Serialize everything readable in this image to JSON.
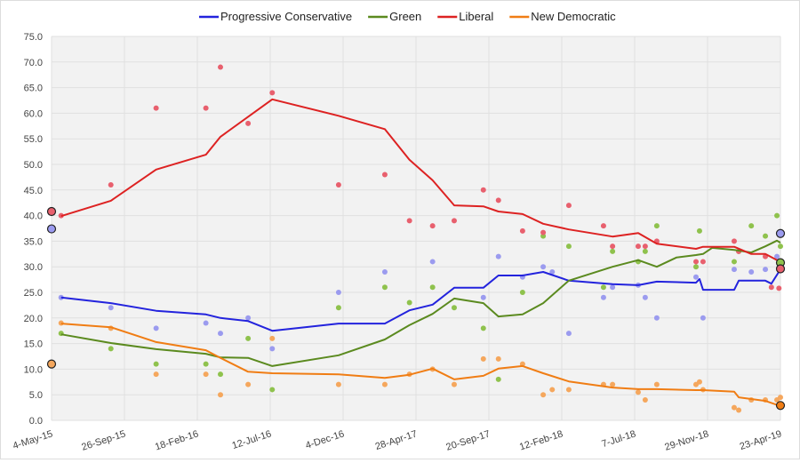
{
  "chart_data": {
    "type": "line",
    "title": "",
    "xlabel": "",
    "ylabel": "",
    "x_ticks": [
      "4-May-15",
      "26-Sep-15",
      "18-Feb-16",
      "12-Jul-16",
      "4-Dec-16",
      "28-Apr-17",
      "20-Sep-17",
      "12-Feb-18",
      "7-Jul-18",
      "29-Nov-18",
      "23-Apr-19"
    ],
    "x_tick_dates": [
      "2015-05-04",
      "2015-09-26",
      "2016-02-18",
      "2016-07-12",
      "2016-12-04",
      "2017-04-28",
      "2017-09-20",
      "2018-02-12",
      "2018-07-07",
      "2018-11-29",
      "2019-04-23"
    ],
    "y_ticks": [
      "0.0",
      "5.0",
      "10.0",
      "15.0",
      "20.0",
      "25.0",
      "30.0",
      "35.0",
      "40.0",
      "45.0",
      "50.0",
      "55.0",
      "60.0",
      "65.0",
      "70.0",
      "75.0"
    ],
    "ylim": [
      0,
      75
    ],
    "grid": true,
    "legend_position": "top",
    "series": [
      {
        "name": "Progressive Conservative",
        "color": "#2323dd",
        "dot_color": "#9b9bef",
        "line": [
          [
            "2015-05-23",
            24.0
          ],
          [
            "2015-08-30",
            22.9
          ],
          [
            "2015-11-28",
            21.4
          ],
          [
            "2016-03-06",
            20.7
          ],
          [
            "2016-04-04",
            20.0
          ],
          [
            "2016-05-29",
            19.4
          ],
          [
            "2016-07-16",
            17.5
          ],
          [
            "2016-11-25",
            18.9
          ],
          [
            "2017-02-25",
            18.9
          ],
          [
            "2017-04-15",
            21.5
          ],
          [
            "2017-05-31",
            22.6
          ],
          [
            "2017-07-13",
            25.9
          ],
          [
            "2017-09-09",
            25.9
          ],
          [
            "2017-10-09",
            28.3
          ],
          [
            "2017-11-26",
            28.3
          ],
          [
            "2018-01-06",
            29.0
          ],
          [
            "2018-02-26",
            27.3
          ],
          [
            "2018-05-24",
            26.6
          ],
          [
            "2018-07-14",
            26.4
          ],
          [
            "2018-08-20",
            27.1
          ],
          [
            "2018-11-06",
            26.9
          ],
          [
            "2018-11-13",
            27.6
          ],
          [
            "2018-11-20",
            25.5
          ],
          [
            "2019-01-21",
            25.5
          ],
          [
            "2019-01-30",
            27.3
          ],
          [
            "2019-03-24",
            27.3
          ],
          [
            "2019-04-05",
            26.7
          ],
          [
            "2019-04-23",
            29.5
          ]
        ],
        "polls": [
          [
            "2015-05-23",
            24
          ],
          [
            "2015-08-30",
            22
          ],
          [
            "2015-11-28",
            18
          ],
          [
            "2016-03-06",
            19
          ],
          [
            "2016-04-04",
            17
          ],
          [
            "2016-05-29",
            20
          ],
          [
            "2016-07-16",
            14
          ],
          [
            "2016-11-25",
            25
          ],
          [
            "2017-02-25",
            29
          ],
          [
            "2017-05-31",
            31
          ],
          [
            "2017-09-09",
            24
          ],
          [
            "2017-10-09",
            32
          ],
          [
            "2017-11-26",
            28
          ],
          [
            "2018-01-06",
            30
          ],
          [
            "2018-01-24",
            29
          ],
          [
            "2018-02-26",
            17
          ],
          [
            "2018-05-06",
            24
          ],
          [
            "2018-05-24",
            26
          ],
          [
            "2018-07-14",
            26.4
          ],
          [
            "2018-07-28",
            24
          ],
          [
            "2018-08-20",
            20
          ],
          [
            "2018-11-06",
            28
          ],
          [
            "2018-11-20",
            20
          ],
          [
            "2019-01-21",
            29.5
          ],
          [
            "2019-02-24",
            29
          ],
          [
            "2019-03-24",
            29.5
          ],
          [
            "2019-04-16",
            32
          ]
        ],
        "start": 37.4,
        "end": 36.5
      },
      {
        "name": "Green",
        "color": "#5b8a1f",
        "dot_color": "#8fc24d",
        "line": [
          [
            "2015-05-23",
            16.8
          ],
          [
            "2015-08-30",
            15.1
          ],
          [
            "2015-11-28",
            13.9
          ],
          [
            "2016-03-06",
            13.0
          ],
          [
            "2016-04-04",
            12.3
          ],
          [
            "2016-05-29",
            12.2
          ],
          [
            "2016-07-16",
            10.6
          ],
          [
            "2016-11-25",
            12.7
          ],
          [
            "2017-02-25",
            15.8
          ],
          [
            "2017-04-15",
            18.6
          ],
          [
            "2017-05-31",
            20.8
          ],
          [
            "2017-07-13",
            23.8
          ],
          [
            "2017-09-09",
            22.9
          ],
          [
            "2017-10-09",
            20.3
          ],
          [
            "2017-11-26",
            20.7
          ],
          [
            "2018-01-06",
            22.9
          ],
          [
            "2018-02-26",
            27.3
          ],
          [
            "2018-05-24",
            30.0
          ],
          [
            "2018-07-14",
            31.3
          ],
          [
            "2018-08-20",
            30.0
          ],
          [
            "2018-09-28",
            31.8
          ],
          [
            "2018-11-06",
            32.3
          ],
          [
            "2018-11-20",
            32.5
          ],
          [
            "2018-12-08",
            33.7
          ],
          [
            "2019-01-21",
            33.3
          ],
          [
            "2019-02-24",
            32.8
          ],
          [
            "2019-03-24",
            34.0
          ],
          [
            "2019-04-16",
            35.1
          ],
          [
            "2019-04-23",
            34.7
          ]
        ],
        "polls": [
          [
            "2015-05-23",
            17
          ],
          [
            "2015-08-30",
            14
          ],
          [
            "2015-11-28",
            11
          ],
          [
            "2016-03-06",
            11
          ],
          [
            "2016-04-04",
            9
          ],
          [
            "2016-05-29",
            16
          ],
          [
            "2016-07-16",
            6
          ],
          [
            "2016-11-25",
            22
          ],
          [
            "2017-02-25",
            26
          ],
          [
            "2017-04-15",
            23
          ],
          [
            "2017-05-31",
            26
          ],
          [
            "2017-07-13",
            22
          ],
          [
            "2017-09-09",
            18
          ],
          [
            "2017-10-09",
            8
          ],
          [
            "2017-11-26",
            25
          ],
          [
            "2018-01-06",
            36
          ],
          [
            "2018-02-26",
            34
          ],
          [
            "2018-05-06",
            26
          ],
          [
            "2018-05-24",
            33
          ],
          [
            "2018-07-14",
            31
          ],
          [
            "2018-07-28",
            33
          ],
          [
            "2018-08-20",
            38
          ],
          [
            "2018-11-06",
            30
          ],
          [
            "2018-11-13",
            37
          ],
          [
            "2019-01-21",
            31
          ],
          [
            "2019-01-30",
            33
          ],
          [
            "2019-02-24",
            38
          ],
          [
            "2019-03-24",
            36
          ],
          [
            "2019-04-16",
            40
          ],
          [
            "2019-04-23",
            34
          ]
        ],
        "start": null,
        "end": 30.8
      },
      {
        "name": "Liberal",
        "color": "#dd2222",
        "dot_color": "#e8606e",
        "line": [
          [
            "2015-05-23",
            39.9
          ],
          [
            "2015-08-30",
            42.9
          ],
          [
            "2015-11-28",
            49.0
          ],
          [
            "2016-03-06",
            51.9
          ],
          [
            "2016-04-04",
            55.4
          ],
          [
            "2016-07-16",
            62.7
          ],
          [
            "2016-11-25",
            59.5
          ],
          [
            "2017-02-25",
            56.9
          ],
          [
            "2017-04-15",
            50.9
          ],
          [
            "2017-05-31",
            46.9
          ],
          [
            "2017-07-13",
            42.0
          ],
          [
            "2017-09-09",
            41.8
          ],
          [
            "2017-10-09",
            40.8
          ],
          [
            "2017-11-26",
            40.3
          ],
          [
            "2018-01-06",
            38.4
          ],
          [
            "2018-02-26",
            37.3
          ],
          [
            "2018-05-24",
            35.9
          ],
          [
            "2018-07-14",
            36.6
          ],
          [
            "2018-08-20",
            34.5
          ],
          [
            "2018-11-06",
            33.5
          ],
          [
            "2018-11-20",
            33.9
          ],
          [
            "2019-01-21",
            33.9
          ],
          [
            "2019-02-24",
            32.5
          ],
          [
            "2019-03-24",
            32.5
          ],
          [
            "2019-04-20",
            31.1
          ]
        ],
        "polls": [
          [
            "2015-05-23",
            40
          ],
          [
            "2015-08-30",
            46
          ],
          [
            "2015-11-28",
            61
          ],
          [
            "2016-03-06",
            61
          ],
          [
            "2016-04-04",
            69
          ],
          [
            "2016-05-29",
            58
          ],
          [
            "2016-07-16",
            64
          ],
          [
            "2016-11-25",
            46
          ],
          [
            "2017-02-25",
            48
          ],
          [
            "2017-04-15",
            39
          ],
          [
            "2017-05-31",
            38
          ],
          [
            "2017-07-13",
            39
          ],
          [
            "2017-09-09",
            45
          ],
          [
            "2017-10-09",
            43
          ],
          [
            "2017-11-26",
            37
          ],
          [
            "2018-01-06",
            36.7
          ],
          [
            "2018-02-26",
            42
          ],
          [
            "2018-05-06",
            38
          ],
          [
            "2018-05-24",
            34
          ],
          [
            "2018-07-14",
            34
          ],
          [
            "2018-07-28",
            34
          ],
          [
            "2018-08-20",
            35
          ],
          [
            "2018-11-06",
            31
          ],
          [
            "2018-11-20",
            31
          ],
          [
            "2019-01-21",
            35
          ],
          [
            "2019-01-30",
            33
          ],
          [
            "2019-03-24",
            32
          ],
          [
            "2019-04-05",
            26
          ],
          [
            "2019-04-20",
            25.8
          ]
        ],
        "start": 40.8,
        "end": 29.6
      },
      {
        "name": "New Democratic",
        "color": "#f07d14",
        "dot_color": "#f5a75d",
        "line": [
          [
            "2015-05-23",
            18.9
          ],
          [
            "2015-08-30",
            18.2
          ],
          [
            "2015-11-28",
            15.3
          ],
          [
            "2016-03-06",
            13.7
          ],
          [
            "2016-04-04",
            12.2
          ],
          [
            "2016-05-29",
            9.5
          ],
          [
            "2016-07-16",
            9.2
          ],
          [
            "2016-11-25",
            9.0
          ],
          [
            "2017-02-25",
            8.3
          ],
          [
            "2017-04-15",
            8.9
          ],
          [
            "2017-05-31",
            10.1
          ],
          [
            "2017-07-13",
            8.0
          ],
          [
            "2017-09-09",
            8.7
          ],
          [
            "2017-10-09",
            10.1
          ],
          [
            "2017-11-26",
            10.6
          ],
          [
            "2018-01-06",
            9.2
          ],
          [
            "2018-02-26",
            7.6
          ],
          [
            "2018-05-24",
            6.4
          ],
          [
            "2018-07-14",
            6.1
          ],
          [
            "2018-08-20",
            6.1
          ],
          [
            "2018-11-06",
            5.9
          ],
          [
            "2018-11-20",
            5.9
          ],
          [
            "2019-01-21",
            5.6
          ],
          [
            "2019-01-30",
            4.5
          ],
          [
            "2019-03-24",
            3.8
          ],
          [
            "2019-04-23",
            2.8
          ]
        ],
        "polls": [
          [
            "2015-05-23",
            19
          ],
          [
            "2015-08-30",
            18
          ],
          [
            "2015-11-28",
            9
          ],
          [
            "2016-03-06",
            9
          ],
          [
            "2016-04-04",
            5
          ],
          [
            "2016-05-29",
            7
          ],
          [
            "2016-07-16",
            16
          ],
          [
            "2016-11-25",
            7
          ],
          [
            "2017-02-25",
            7
          ],
          [
            "2017-04-15",
            9
          ],
          [
            "2017-05-31",
            10
          ],
          [
            "2017-07-13",
            7
          ],
          [
            "2017-09-09",
            12
          ],
          [
            "2017-10-09",
            12
          ],
          [
            "2017-11-26",
            11
          ],
          [
            "2018-01-06",
            5
          ],
          [
            "2018-01-24",
            6
          ],
          [
            "2018-02-26",
            6
          ],
          [
            "2018-05-06",
            7
          ],
          [
            "2018-05-24",
            7
          ],
          [
            "2018-07-14",
            5.5
          ],
          [
            "2018-07-28",
            4
          ],
          [
            "2018-08-20",
            7
          ],
          [
            "2018-11-06",
            7
          ],
          [
            "2018-11-13",
            7.5
          ],
          [
            "2018-11-20",
            6
          ],
          [
            "2019-01-21",
            2.5
          ],
          [
            "2019-01-30",
            2
          ],
          [
            "2019-02-24",
            4
          ],
          [
            "2019-03-24",
            4
          ],
          [
            "2019-04-16",
            4
          ],
          [
            "2019-04-23",
            4.5
          ]
        ],
        "start": 11.0,
        "end": 2.9
      }
    ]
  }
}
